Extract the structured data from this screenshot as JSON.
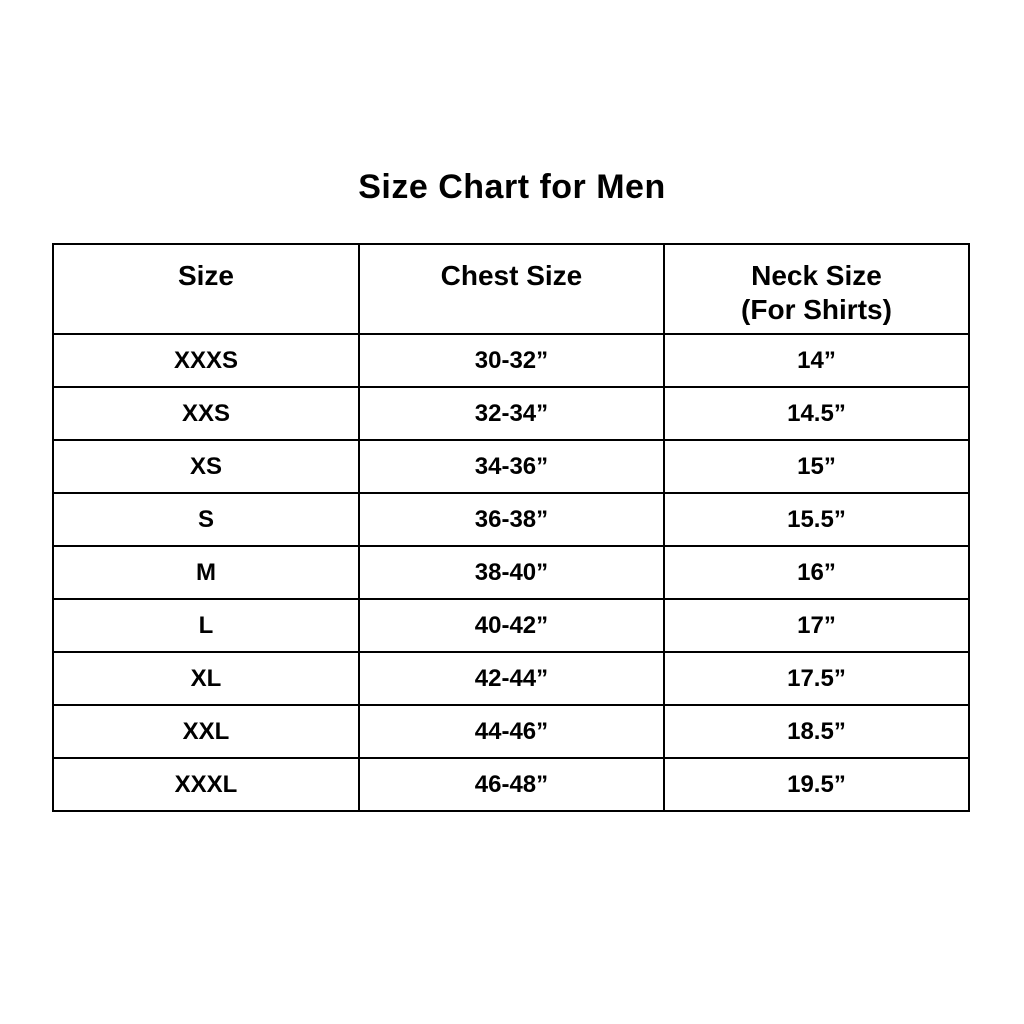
{
  "title": "Size Chart for Men",
  "colors": {
    "background": "#ffffff",
    "text": "#000000",
    "border": "#000000"
  },
  "table": {
    "headers": [
      {
        "label": "Size"
      },
      {
        "label": "Chest Size"
      },
      {
        "label": "Neck Size",
        "sublabel": "(For Shirts)"
      }
    ],
    "rows": [
      {
        "size": "XXXS",
        "chest": "30-32”",
        "neck": "14”"
      },
      {
        "size": "XXS",
        "chest": "32-34”",
        "neck": "14.5”"
      },
      {
        "size": "XS",
        "chest": "34-36”",
        "neck": "15”"
      },
      {
        "size": "S",
        "chest": "36-38”",
        "neck": "15.5”"
      },
      {
        "size": "M",
        "chest": "38-40”",
        "neck": "16”"
      },
      {
        "size": "L",
        "chest": "40-42”",
        "neck": "17”"
      },
      {
        "size": "XL",
        "chest": "42-44”",
        "neck": "17.5”"
      },
      {
        "size": "XXL",
        "chest": "44-46”",
        "neck": "18.5”"
      },
      {
        "size": "XXXL",
        "chest": "46-48”",
        "neck": "19.5”"
      }
    ]
  },
  "chart_data": {
    "type": "table",
    "title": "Size Chart for Men",
    "columns": [
      "Size",
      "Chest Size",
      "Neck Size (For Shirts)"
    ],
    "rows": [
      [
        "XXXS",
        "30-32”",
        "14”"
      ],
      [
        "XXS",
        "32-34”",
        "14.5”"
      ],
      [
        "XS",
        "34-36”",
        "15”"
      ],
      [
        "S",
        "36-38”",
        "15.5”"
      ],
      [
        "M",
        "38-40”",
        "16”"
      ],
      [
        "L",
        "40-42”",
        "17”"
      ],
      [
        "XL",
        "42-44”",
        "17.5”"
      ],
      [
        "XXL",
        "44-46”",
        "18.5”"
      ],
      [
        "XXXL",
        "46-48”",
        "19.5”"
      ]
    ]
  }
}
